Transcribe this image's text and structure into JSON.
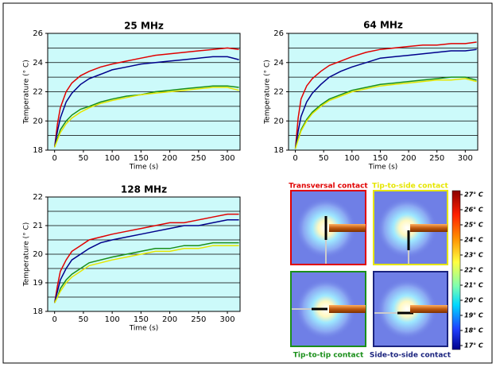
{
  "chart_data": [
    {
      "type": "line",
      "title": "25 MHz",
      "x_label": "Time (s)",
      "y_label": "Temperature (° C)",
      "x": [
        0,
        5,
        10,
        20,
        30,
        45,
        60,
        80,
        100,
        125,
        150,
        175,
        200,
        225,
        250,
        275,
        300,
        320
      ],
      "xlim": [
        -12,
        322
      ],
      "xticks": [
        0,
        50,
        100,
        150,
        200,
        250,
        300
      ],
      "ylim": [
        18,
        26
      ],
      "yticks": [
        18,
        20,
        22,
        24,
        26
      ],
      "ygrid": [
        18,
        19,
        20,
        21,
        22,
        23,
        24,
        25,
        26
      ],
      "series": [
        {
          "color": "#e00000",
          "values": [
            18.2,
            19.8,
            20.9,
            22.0,
            22.6,
            23.1,
            23.4,
            23.7,
            23.9,
            24.1,
            24.3,
            24.5,
            24.6,
            24.7,
            24.8,
            24.9,
            25.0,
            24.9
          ]
        },
        {
          "color": "#00008b",
          "values": [
            18.2,
            19.3,
            20.2,
            21.3,
            21.9,
            22.5,
            22.9,
            23.2,
            23.5,
            23.7,
            23.9,
            24.0,
            24.1,
            24.2,
            24.3,
            24.4,
            24.4,
            24.2
          ]
        },
        {
          "color": "#1a8f1a",
          "values": [
            18.2,
            18.8,
            19.4,
            20.0,
            20.4,
            20.8,
            21.0,
            21.3,
            21.5,
            21.7,
            21.8,
            22.0,
            22.1,
            22.2,
            22.3,
            22.4,
            22.4,
            22.3
          ]
        },
        {
          "color": "#e6e600",
          "values": [
            18.2,
            18.7,
            19.2,
            19.8,
            20.2,
            20.6,
            20.9,
            21.2,
            21.4,
            21.6,
            21.8,
            21.9,
            22.0,
            22.1,
            22.2,
            22.3,
            22.3,
            22.1
          ]
        }
      ]
    },
    {
      "type": "line",
      "title": "64 MHz",
      "x_label": "Time (s)",
      "y_label": "Temperature (° C)",
      "x": [
        0,
        5,
        10,
        20,
        30,
        45,
        60,
        80,
        100,
        125,
        150,
        175,
        200,
        225,
        250,
        275,
        300,
        320
      ],
      "xlim": [
        -12,
        322
      ],
      "xticks": [
        0,
        50,
        100,
        150,
        200,
        250,
        300
      ],
      "ylim": [
        18,
        26
      ],
      "yticks": [
        18,
        20,
        22,
        24,
        26
      ],
      "ygrid": [
        18,
        19,
        20,
        21,
        22,
        23,
        24,
        25,
        26
      ],
      "series": [
        {
          "color": "#e00000",
          "values": [
            18.1,
            20.2,
            21.5,
            22.4,
            22.9,
            23.4,
            23.8,
            24.1,
            24.4,
            24.7,
            24.9,
            25.0,
            25.1,
            25.2,
            25.2,
            25.3,
            25.3,
            25.4
          ]
        },
        {
          "color": "#00008b",
          "values": [
            18.1,
            19.3,
            20.3,
            21.3,
            21.9,
            22.5,
            23.0,
            23.4,
            23.7,
            24.0,
            24.3,
            24.4,
            24.5,
            24.6,
            24.7,
            24.8,
            24.8,
            24.9
          ]
        },
        {
          "color": "#1a8f1a",
          "values": [
            18.1,
            18.8,
            19.4,
            20.1,
            20.6,
            21.1,
            21.5,
            21.8,
            22.1,
            22.3,
            22.5,
            22.6,
            22.7,
            22.8,
            22.9,
            23.0,
            23.0,
            22.8
          ]
        },
        {
          "color": "#e6e600",
          "values": [
            18.1,
            18.7,
            19.3,
            20.0,
            20.5,
            21.0,
            21.4,
            21.7,
            22.0,
            22.2,
            22.4,
            22.5,
            22.6,
            22.7,
            22.8,
            22.8,
            22.9,
            22.7
          ]
        }
      ]
    },
    {
      "type": "line",
      "title": "128 MHz",
      "x_label": "Time (s)",
      "y_label": "Temperature (° C)",
      "x": [
        0,
        5,
        10,
        20,
        30,
        45,
        60,
        80,
        100,
        125,
        150,
        175,
        200,
        225,
        250,
        275,
        300,
        320
      ],
      "xlim": [
        -12,
        322
      ],
      "xticks": [
        0,
        50,
        100,
        150,
        200,
        250,
        300
      ],
      "ylim": [
        18,
        22
      ],
      "yticks": [
        18,
        19,
        20,
        21,
        22
      ],
      "ygrid": [
        18,
        18.5,
        19,
        19.5,
        20,
        20.5,
        21,
        21.5,
        22
      ],
      "series": [
        {
          "color": "#e00000",
          "values": [
            18.3,
            18.9,
            19.4,
            19.8,
            20.1,
            20.3,
            20.5,
            20.6,
            20.7,
            20.8,
            20.9,
            21.0,
            21.1,
            21.1,
            21.2,
            21.3,
            21.4,
            21.4
          ]
        },
        {
          "color": "#00008b",
          "values": [
            18.3,
            18.7,
            19.1,
            19.5,
            19.8,
            20.0,
            20.2,
            20.4,
            20.5,
            20.6,
            20.7,
            20.8,
            20.9,
            21.0,
            21.0,
            21.1,
            21.2,
            21.2
          ]
        },
        {
          "color": "#1a8f1a",
          "values": [
            18.3,
            18.5,
            18.8,
            19.1,
            19.3,
            19.5,
            19.7,
            19.8,
            19.9,
            20.0,
            20.1,
            20.2,
            20.2,
            20.3,
            20.3,
            20.4,
            20.4,
            20.4
          ]
        },
        {
          "color": "#e6e600",
          "values": [
            18.3,
            18.5,
            18.7,
            19.0,
            19.2,
            19.4,
            19.6,
            19.7,
            19.8,
            19.9,
            20.0,
            20.1,
            20.1,
            20.2,
            20.2,
            20.3,
            20.3,
            20.3
          ]
        }
      ]
    }
  ],
  "panels": {
    "titles": [
      {
        "text": "Transversal contact",
        "color": "#e00000"
      },
      {
        "text": "Tip-to-side contact",
        "color": "#e6e600"
      },
      {
        "text": "Tip-to-tip contact",
        "color": "#1a8f1a"
      },
      {
        "text": "Side-to-side contact",
        "color": "#1a237e"
      }
    ],
    "colorbar": [
      {
        "value": 27,
        "label": "27° C"
      },
      {
        "value": 26,
        "label": "26° C"
      },
      {
        "value": 25,
        "label": "25° C"
      },
      {
        "value": 24,
        "label": "24° C"
      },
      {
        "value": 23,
        "label": "23° C"
      },
      {
        "value": 22,
        "label": "22° C"
      },
      {
        "value": 21,
        "label": "21° C"
      },
      {
        "value": 20,
        "label": "20° C"
      },
      {
        "value": 19,
        "label": "19° C"
      },
      {
        "value": 18,
        "label": "18° C"
      },
      {
        "value": 17,
        "label": "17° C"
      }
    ]
  }
}
